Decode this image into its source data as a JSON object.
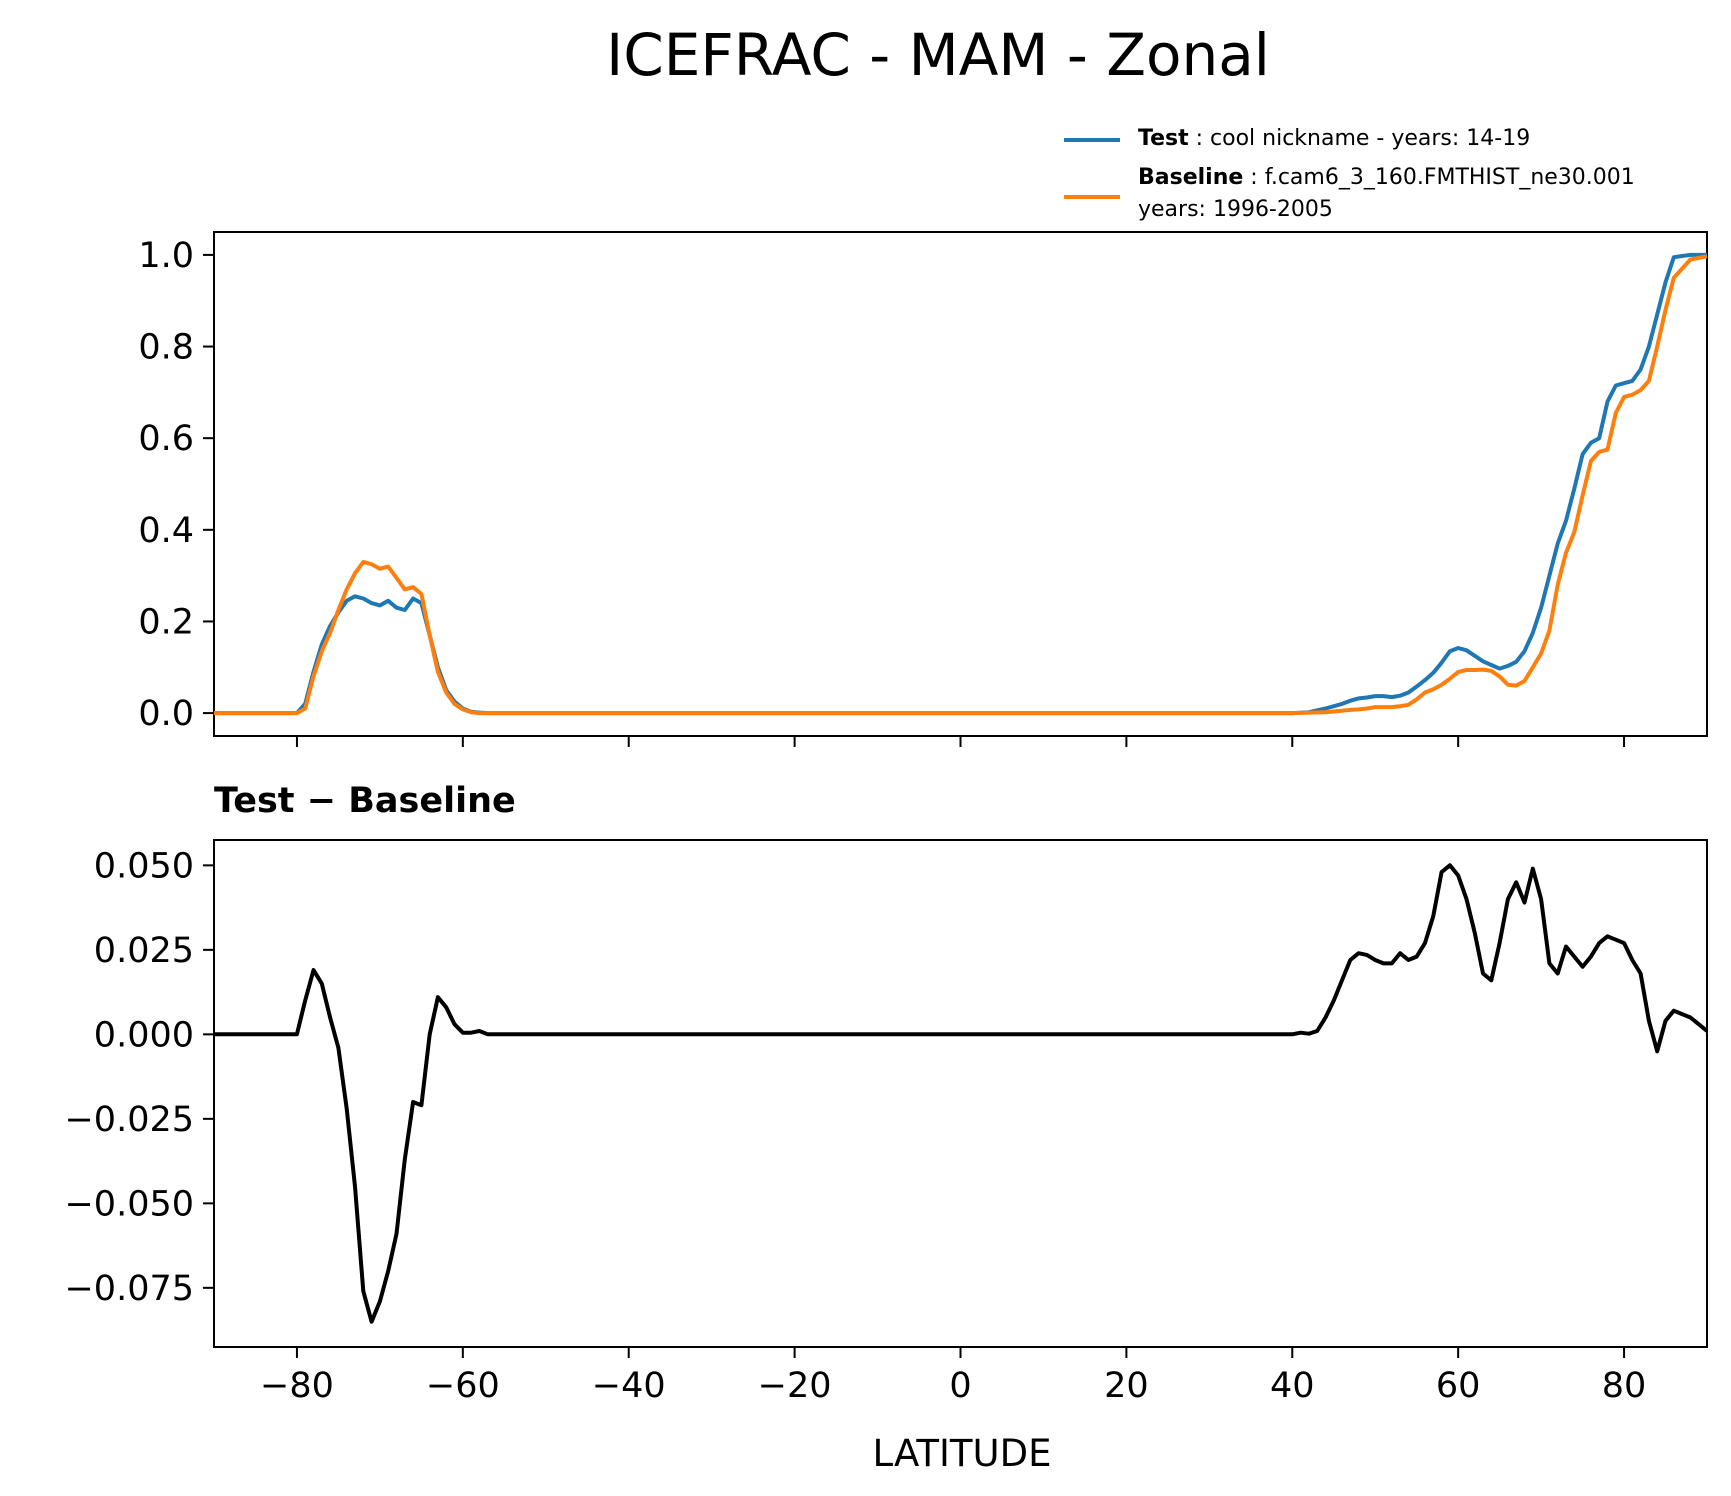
{
  "chart_data": {
    "title": "ICEFRAC - MAM - Zonal",
    "colors": {
      "test": "#1f77b4",
      "baseline": "#ff7f0e",
      "difference": "#000000"
    },
    "legend": {
      "placement": "above top-right",
      "entries": [
        {
          "series": "test",
          "bold_label": "Test",
          "separator": ":",
          "lines": [
            "cool nickname - years: 14-19"
          ]
        },
        {
          "series": "baseline",
          "bold_label": "Baseline",
          "separator": ":",
          "lines": [
            "f.cam6_3_160.FMTHIST_ne30.001",
            "years: 1996-2005"
          ]
        }
      ]
    },
    "panels": [
      {
        "id": "zonal",
        "type": "line",
        "xlim": [
          -90,
          90
        ],
        "ylim": [
          -0.05,
          1.05
        ],
        "yticks": [
          0.0,
          0.2,
          0.4,
          0.6,
          0.8,
          1.0
        ],
        "ytick_labels": [
          "0.0",
          "0.2",
          "0.4",
          "0.6",
          "0.8",
          "1.0"
        ],
        "xticks": [
          -80,
          -60,
          -40,
          -20,
          0,
          20,
          40,
          60,
          80
        ],
        "show_xtick_labels": false,
        "grid": false,
        "series": [
          {
            "key": "test",
            "x": [
              -90,
              -80,
              -79,
              -78,
              -77,
              -76,
              -75,
              -74,
              -73,
              -72,
              -71,
              -70,
              -69,
              -68,
              -67,
              -66,
              -65,
              -64,
              -63,
              -62,
              -61,
              -60,
              -59,
              -58,
              -57,
              40,
              42,
              44,
              46,
              47,
              48,
              49,
              50,
              51,
              52,
              53,
              54,
              55,
              56,
              57,
              58,
              59,
              60,
              61,
              62,
              63,
              64,
              65,
              66,
              67,
              68,
              69,
              70,
              71,
              72,
              73,
              74,
              75,
              76,
              77,
              78,
              79,
              80,
              81,
              82,
              83,
              84,
              85,
              86,
              88,
              90
            ],
            "y": [
              0,
              0,
              0.02,
              0.09,
              0.15,
              0.19,
              0.22,
              0.245,
              0.255,
              0.25,
              0.24,
              0.235,
              0.245,
              0.23,
              0.225,
              0.25,
              0.24,
              0.17,
              0.1,
              0.05,
              0.025,
              0.01,
              0.003,
              0.001,
              0,
              0,
              0.002,
              0.01,
              0.02,
              0.027,
              0.032,
              0.034,
              0.037,
              0.037,
              0.035,
              0.038,
              0.045,
              0.058,
              0.072,
              0.088,
              0.11,
              0.135,
              0.142,
              0.137,
              0.125,
              0.113,
              0.105,
              0.097,
              0.103,
              0.112,
              0.135,
              0.175,
              0.23,
              0.3,
              0.37,
              0.42,
              0.49,
              0.565,
              0.59,
              0.6,
              0.68,
              0.715,
              0.72,
              0.725,
              0.75,
              0.8,
              0.87,
              0.94,
              0.995,
              1.0,
              1.0
            ]
          },
          {
            "key": "baseline",
            "x": [
              -90,
              -80,
              -79,
              -78,
              -77,
              -76,
              -75,
              -74,
              -73,
              -72,
              -71,
              -70,
              -69,
              -68,
              -67,
              -66,
              -65,
              -64,
              -63,
              -62,
              -61,
              -60,
              -59,
              -58,
              -57,
              40,
              42,
              44,
              46,
              47,
              48,
              49,
              50,
              51,
              52,
              53,
              54,
              55,
              56,
              57,
              58,
              59,
              60,
              61,
              62,
              63,
              64,
              65,
              66,
              67,
              68,
              69,
              70,
              71,
              72,
              73,
              74,
              75,
              76,
              77,
              78,
              79,
              80,
              81,
              82,
              83,
              84,
              85,
              86,
              88,
              90
            ],
            "y": [
              0,
              0,
              0.01,
              0.08,
              0.135,
              0.175,
              0.225,
              0.27,
              0.305,
              0.33,
              0.325,
              0.315,
              0.32,
              0.295,
              0.27,
              0.275,
              0.26,
              0.17,
              0.09,
              0.045,
              0.02,
              0.008,
              0.002,
              0,
              0,
              0,
              0.001,
              0.002,
              0.005,
              0.007,
              0.008,
              0.01,
              0.013,
              0.013,
              0.013,
              0.015,
              0.018,
              0.03,
              0.045,
              0.052,
              0.062,
              0.075,
              0.09,
              0.094,
              0.094,
              0.095,
              0.092,
              0.08,
              0.062,
              0.06,
              0.07,
              0.1,
              0.13,
              0.18,
              0.28,
              0.35,
              0.395,
              0.475,
              0.55,
              0.57,
              0.575,
              0.655,
              0.69,
              0.695,
              0.705,
              0.725,
              0.8,
              0.88,
              0.95,
              0.99,
              0.997
            ]
          }
        ]
      },
      {
        "id": "difference",
        "type": "line",
        "title": "Test − Baseline",
        "xlim": [
          -90,
          90
        ],
        "ylim": [
          -0.0925,
          0.0575
        ],
        "yticks": [
          -0.075,
          -0.05,
          -0.025,
          0.0,
          0.025,
          0.05
        ],
        "ytick_labels": [
          "−0.075",
          "−0.050",
          "−0.025",
          "0.000",
          "0.025",
          "0.050"
        ],
        "xticks": [
          -80,
          -60,
          -40,
          -20,
          0,
          20,
          40,
          60,
          80
        ],
        "xtick_labels": [
          "−80",
          "−60",
          "−40",
          "−20",
          "0",
          "20",
          "40",
          "60",
          "80"
        ],
        "xlabel": "LATITUDE",
        "grid": false,
        "series": [
          {
            "key": "difference",
            "x": [
              -90,
              -80,
              -79,
              -78,
              -77,
              -76,
              -75,
              -74,
              -73,
              -72,
              -71,
              -70,
              -69,
              -68,
              -67,
              -66,
              -65,
              -64,
              -63,
              -62,
              -61,
              -60,
              -59,
              -58,
              -57,
              40,
              41,
              42,
              43,
              44,
              45,
              46,
              47,
              48,
              49,
              50,
              51,
              52,
              53,
              54,
              55,
              56,
              57,
              58,
              59,
              60,
              61,
              62,
              63,
              64,
              65,
              66,
              67,
              68,
              69,
              70,
              71,
              72,
              73,
              74,
              75,
              76,
              77,
              78,
              79,
              80,
              81,
              82,
              83,
              84,
              85,
              86,
              87,
              88,
              89,
              90
            ],
            "y": [
              0,
              0,
              0.01,
              0.019,
              0.015,
              0.005,
              -0.004,
              -0.022,
              -0.045,
              -0.076,
              -0.085,
              -0.079,
              -0.07,
              -0.059,
              -0.037,
              -0.02,
              -0.021,
              0.0,
              0.011,
              0.008,
              0.003,
              0.0005,
              0.0005,
              0.001,
              0,
              0,
              0.0005,
              0.0002,
              0.001,
              0.005,
              0.01,
              0.016,
              0.022,
              0.024,
              0.0235,
              0.022,
              0.021,
              0.021,
              0.024,
              0.022,
              0.023,
              0.027,
              0.035,
              0.048,
              0.05,
              0.047,
              0.04,
              0.03,
              0.018,
              0.016,
              0.027,
              0.04,
              0.045,
              0.039,
              0.049,
              0.04,
              0.021,
              0.018,
              0.026,
              0.023,
              0.02,
              0.023,
              0.027,
              0.029,
              0.028,
              0.027,
              0.022,
              0.018,
              0.004,
              -0.005,
              0.004,
              0.007,
              0.006,
              0.005,
              0.003,
              0.001
            ]
          }
        ]
      }
    ]
  }
}
